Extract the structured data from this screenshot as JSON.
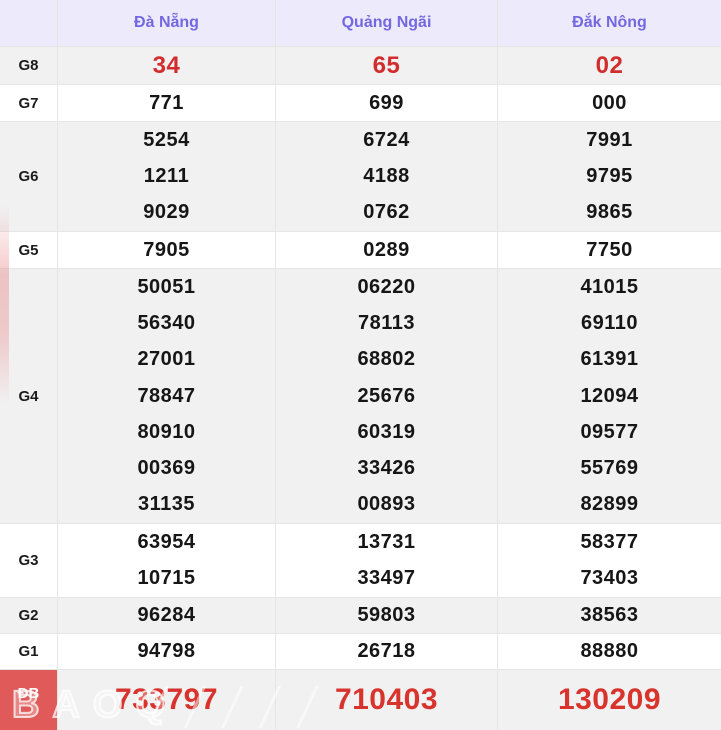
{
  "table": {
    "header": {
      "corner": "",
      "provinces": [
        "Đà Nẵng",
        "Quảng Ngãi",
        "Đắk Nông"
      ]
    },
    "rows": [
      {
        "label": "G8",
        "value_style": "red-medium",
        "label_style": "normal",
        "values": [
          [
            "34"
          ],
          [
            "65"
          ],
          [
            "02"
          ]
        ]
      },
      {
        "label": "G7",
        "value_style": "normal",
        "label_style": "normal",
        "values": [
          [
            "771"
          ],
          [
            "699"
          ],
          [
            "000"
          ]
        ]
      },
      {
        "label": "G6",
        "value_style": "normal",
        "label_style": "normal",
        "values": [
          [
            "5254",
            "1211",
            "9029"
          ],
          [
            "6724",
            "4188",
            "0762"
          ],
          [
            "7991",
            "9795",
            "9865"
          ]
        ]
      },
      {
        "label": "G5",
        "value_style": "normal",
        "label_style": "normal",
        "values": [
          [
            "7905"
          ],
          [
            "0289"
          ],
          [
            "7750"
          ]
        ]
      },
      {
        "label": "G4",
        "value_style": "normal",
        "label_style": "normal",
        "values": [
          [
            "50051",
            "56340",
            "27001",
            "78847",
            "80910",
            "00369",
            "31135"
          ],
          [
            "06220",
            "78113",
            "68802",
            "25676",
            "60319",
            "33426",
            "00893"
          ],
          [
            "41015",
            "69110",
            "61391",
            "12094",
            "09577",
            "55769",
            "82899"
          ]
        ]
      },
      {
        "label": "G3",
        "value_style": "normal",
        "label_style": "normal",
        "values": [
          [
            "63954",
            "10715"
          ],
          [
            "13731",
            "33497"
          ],
          [
            "58377",
            "73403"
          ]
        ]
      },
      {
        "label": "G2",
        "value_style": "normal",
        "label_style": "normal",
        "values": [
          [
            "96284"
          ],
          [
            "59803"
          ],
          [
            "38563"
          ]
        ]
      },
      {
        "label": "G1",
        "value_style": "normal",
        "label_style": "normal",
        "values": [
          [
            "94798"
          ],
          [
            "26718"
          ],
          [
            "88880"
          ]
        ]
      },
      {
        "label": "ĐB",
        "value_style": "red-large",
        "label_style": "red-badge",
        "values": [
          [
            "733797"
          ],
          [
            "710403"
          ],
          [
            "130209"
          ]
        ]
      }
    ],
    "watermark": "BAOQ"
  },
  "colors": {
    "header_bg": "#edeafb",
    "header_text": "#7468e1",
    "shade_row_bg": "#f1f1f2",
    "value_text": "#161616",
    "highlight_red": "#d32c2c",
    "db_label_bg": "#e05a5a",
    "border": "#e6e6e6"
  }
}
